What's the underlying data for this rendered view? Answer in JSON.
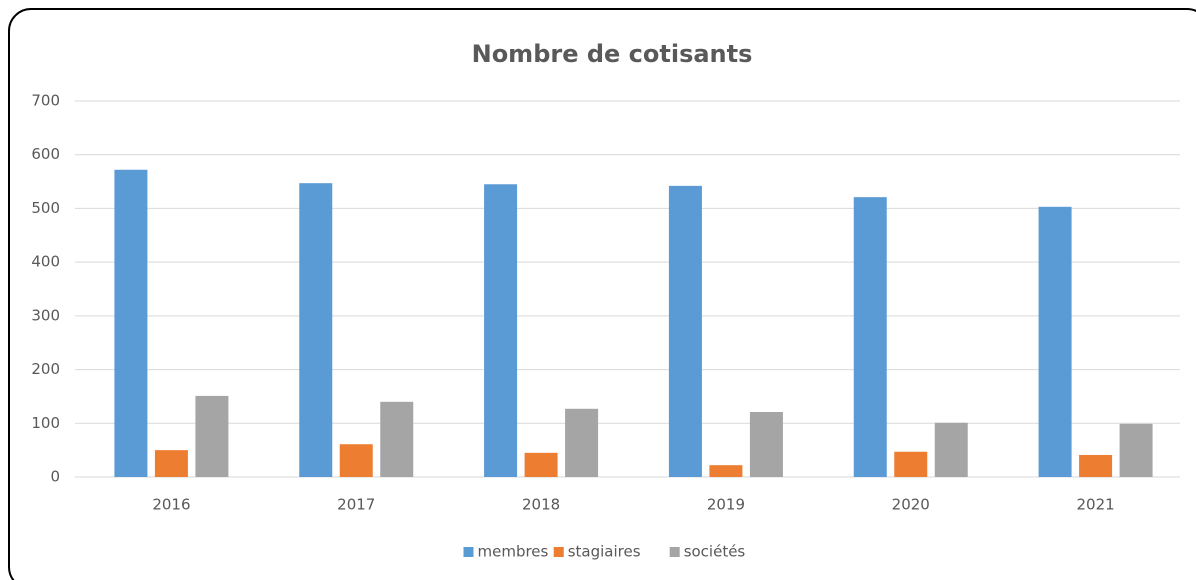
{
  "chart_data": {
    "type": "bar",
    "title": "Nombre de cotisants",
    "categories": [
      "2016",
      "2017",
      "2018",
      "2019",
      "2020",
      "2021"
    ],
    "series": [
      {
        "name": "membres",
        "color": "#5b9bd5",
        "values": [
          572,
          547,
          545,
          542,
          521,
          503
        ]
      },
      {
        "name": "stagiaires",
        "color": "#ed7d31",
        "values": [
          50,
          61,
          45,
          22,
          47,
          41
        ]
      },
      {
        "name": "sociétés",
        "color": "#a5a5a5",
        "values": [
          151,
          140,
          127,
          121,
          101,
          99
        ]
      }
    ],
    "ylim": [
      0,
      700
    ],
    "yticks": [
      0,
      100,
      200,
      300,
      400,
      500,
      600,
      700
    ],
    "grid": true,
    "legend": "bottom"
  }
}
